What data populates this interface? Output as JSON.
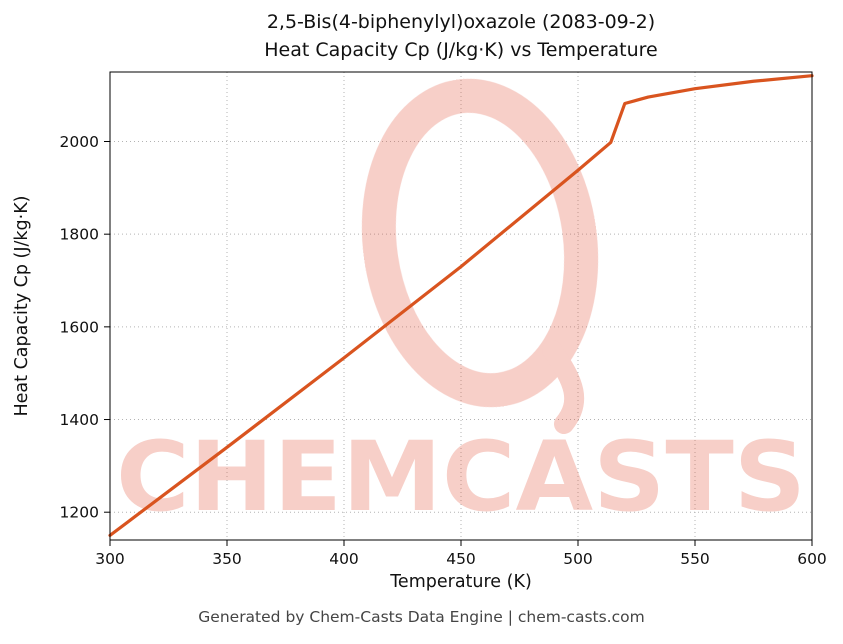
{
  "title": {
    "line1": "2,5-Bis(4-biphenylyl)oxazole (2083-09-2)",
    "line2": "Heat Capacity Cp (J/kg·K) vs Temperature"
  },
  "footer": {
    "text": "Generated by Chem-Casts Data Engine | chem-casts.com"
  },
  "watermark": {
    "text": "CHEMCASTS",
    "logo": "paint-swirl-ring",
    "color": "#e0523a"
  },
  "chart_data": {
    "type": "line",
    "title": "2,5-Bis(4-biphenylyl)oxazole (2083-09-2) — Heat Capacity Cp (J/kg·K) vs Temperature",
    "xlabel": "Temperature (K)",
    "ylabel": "Heat Capacity Cp (J/kg·K)",
    "xlim": [
      300,
      600
    ],
    "ylim": [
      1140,
      2150
    ],
    "xticks": [
      300,
      350,
      400,
      450,
      500,
      550,
      600
    ],
    "yticks": [
      1200,
      1400,
      1600,
      1800,
      2000
    ],
    "grid": true,
    "grid_style": "dotted",
    "legend": "none",
    "x": [
      300,
      350,
      400,
      450,
      500,
      514,
      520,
      530,
      550,
      575,
      600
    ],
    "series": [
      {
        "name": "Heat Capacity Cp",
        "color": "#d9541f",
        "values": [
          1150,
          1340,
          1533,
          1730,
          1938,
          1998,
          2082,
          2096,
          2114,
          2130,
          2142
        ]
      }
    ]
  }
}
